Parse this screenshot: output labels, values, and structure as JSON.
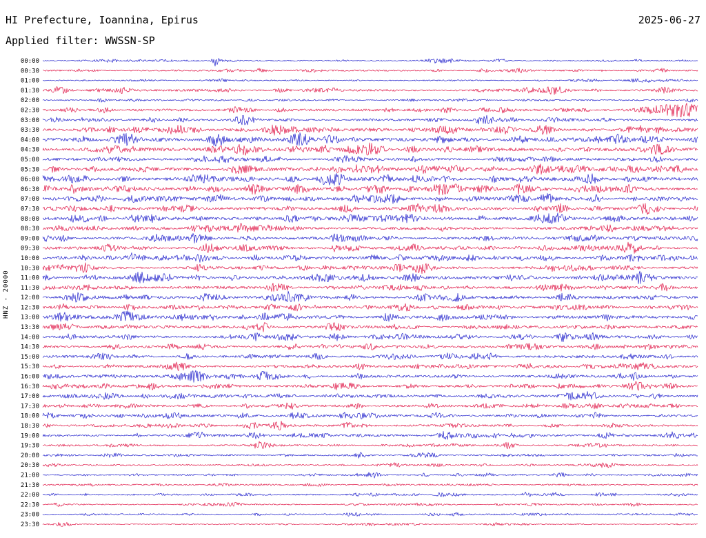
{
  "header": {
    "title": "HI Prefecture, Ioannina, Epirus",
    "date": "2025-06-27",
    "filter": "Applied filter: WWSSN-SP"
  },
  "axis": {
    "left_label": "HNZ - 20000"
  },
  "colors": {
    "blue": "#2222cc",
    "red": "#e01848",
    "text": "#000000",
    "background": "#ffffff"
  },
  "chart_data": {
    "type": "line",
    "subtype": "helicorder-seismogram",
    "title": "HI Prefecture, Ioannina, Epirus",
    "date": "2025-06-27",
    "filter": "WWSSN-SP",
    "channel": "HNZ",
    "scale": 20000,
    "row_duration_minutes": 30,
    "start_time": "00:00",
    "end_time": "23:30",
    "trace_color_cycle": [
      "blue",
      "red"
    ],
    "seed": 20250627,
    "rows": [
      {
        "t": "00:00",
        "c": "blue",
        "n": 0.8,
        "b": [
          [
            250,
            9,
            3
          ],
          [
            660,
            1.5,
            8
          ]
        ]
      },
      {
        "t": "00:30",
        "c": "red",
        "n": 1.0,
        "b": [
          [
            640,
            2.5,
            6
          ],
          [
            900,
            2,
            5
          ]
        ]
      },
      {
        "t": "01:00",
        "c": "blue",
        "n": 0.8,
        "b": [
          [
            260,
            2,
            6
          ]
        ]
      },
      {
        "t": "01:30",
        "c": "red",
        "n": 1.4,
        "b": [
          [
            25,
            5,
            8
          ],
          [
            115,
            4,
            10
          ],
          [
            345,
            2.5,
            8
          ],
          [
            745,
            3,
            10
          ],
          [
            900,
            2.5,
            8
          ]
        ]
      },
      {
        "t": "02:00",
        "c": "blue",
        "n": 0.9,
        "b": [
          [
            85,
            2,
            5
          ],
          [
            420,
            1.5,
            6
          ]
        ]
      },
      {
        "t": "02:30",
        "c": "red",
        "n": 1.6,
        "b": [
          [
            40,
            3,
            8
          ],
          [
            90,
            3,
            6
          ],
          [
            280,
            3.5,
            8
          ],
          [
            640,
            2.5,
            6
          ],
          [
            890,
            4,
            20
          ],
          [
            940,
            4,
            15
          ]
        ]
      },
      {
        "t": "03:00",
        "c": "blue",
        "n": 1.5,
        "b": [
          [
            160,
            3,
            8
          ],
          [
            290,
            4,
            10
          ],
          [
            640,
            3.5,
            8
          ],
          [
            680,
            3,
            6
          ],
          [
            740,
            3,
            8
          ]
        ]
      },
      {
        "t": "03:30",
        "c": "red",
        "n": 2.2,
        "b": [
          [
            140,
            3.5,
            8
          ],
          [
            340,
            3,
            8
          ],
          [
            590,
            4,
            10
          ],
          [
            670,
            4,
            8
          ],
          [
            730,
            3.5,
            8
          ],
          [
            850,
            3,
            6
          ]
        ]
      },
      {
        "t": "04:00",
        "c": "blue",
        "n": 2.2,
        "b": [
          [
            255,
            4.5,
            10
          ],
          [
            380,
            4,
            8
          ],
          [
            420,
            4.5,
            8
          ],
          [
            840,
            4,
            10
          ],
          [
            880,
            3.5,
            8
          ]
        ]
      },
      {
        "t": "04:30",
        "c": "red",
        "n": 2.4,
        "b": [
          [
            290,
            5,
            10
          ],
          [
            450,
            4.5,
            8
          ],
          [
            535,
            4,
            8
          ],
          [
            630,
            4,
            8
          ],
          [
            890,
            4.5,
            12
          ]
        ]
      },
      {
        "t": "05:00",
        "c": "blue",
        "n": 1.8,
        "b": [
          [
            230,
            4,
            8
          ],
          [
            890,
            3.5,
            8
          ]
        ]
      },
      {
        "t": "05:30",
        "c": "red",
        "n": 2.4,
        "b": [
          [
            280,
            4.5,
            8
          ],
          [
            460,
            4,
            8
          ],
          [
            550,
            4,
            6
          ],
          [
            600,
            3.5,
            6
          ],
          [
            780,
            4,
            8
          ],
          [
            920,
            4,
            8
          ]
        ]
      },
      {
        "t": "06:00",
        "c": "blue",
        "n": 2.4,
        "b": [
          [
            40,
            3.5,
            6
          ],
          [
            230,
            4.5,
            8
          ],
          [
            360,
            4,
            8
          ],
          [
            500,
            4,
            8
          ],
          [
            700,
            4.5,
            8
          ]
        ]
      },
      {
        "t": "06:30",
        "c": "red",
        "n": 2.4,
        "b": [
          [
            120,
            4,
            8
          ],
          [
            310,
            4.5,
            8
          ],
          [
            490,
            4,
            8
          ],
          [
            700,
            4.5,
            10
          ],
          [
            850,
            4,
            8
          ]
        ]
      },
      {
        "t": "07:00",
        "c": "blue",
        "n": 2.2,
        "b": [
          [
            80,
            4,
            8
          ],
          [
            250,
            4.5,
            8
          ],
          [
            320,
            4,
            8
          ],
          [
            730,
            4.5,
            10
          ]
        ]
      },
      {
        "t": "07:30",
        "c": "red",
        "n": 2.0,
        "b": [
          [
            100,
            3.5,
            6
          ],
          [
            180,
            3.5,
            6
          ],
          [
            580,
            3.5,
            8
          ],
          [
            870,
            4,
            8
          ]
        ]
      },
      {
        "t": "08:00",
        "c": "blue",
        "n": 2.2,
        "b": [
          [
            60,
            4,
            8
          ],
          [
            160,
            3.5,
            6
          ],
          [
            360,
            4,
            8
          ],
          [
            830,
            4.5,
            10
          ]
        ]
      },
      {
        "t": "08:30",
        "c": "red",
        "n": 2.0,
        "b": [
          [
            220,
            3.5,
            6
          ],
          [
            240,
            3.5,
            6
          ],
          [
            820,
            4,
            8
          ]
        ]
      },
      {
        "t": "09:00",
        "c": "blue",
        "n": 2.0,
        "b": [
          [
            30,
            3.5,
            6
          ],
          [
            220,
            4,
            8
          ],
          [
            430,
            3.5,
            6
          ],
          [
            790,
            3.5,
            8
          ]
        ]
      },
      {
        "t": "09:30",
        "c": "red",
        "n": 1.9,
        "b": [
          [
            240,
            3.5,
            8
          ],
          [
            540,
            3.5,
            6
          ],
          [
            730,
            3.5,
            6
          ]
        ]
      },
      {
        "t": "10:00",
        "c": "blue",
        "n": 2.0,
        "b": [
          [
            310,
            3.5,
            6
          ],
          [
            480,
            3.5,
            6
          ],
          [
            580,
            4,
            8
          ],
          [
            620,
            3.5,
            6
          ],
          [
            860,
            4,
            8
          ]
        ]
      },
      {
        "t": "10:30",
        "c": "red",
        "n": 1.9,
        "b": [
          [
            230,
            3.5,
            6
          ],
          [
            550,
            3.5,
            6
          ],
          [
            740,
            3.5,
            8
          ]
        ]
      },
      {
        "t": "11:00",
        "c": "blue",
        "n": 2.2,
        "b": [
          [
            140,
            4,
            8
          ],
          [
            180,
            3.5,
            6
          ],
          [
            470,
            4,
            8
          ],
          [
            540,
            3.5,
            6
          ],
          [
            810,
            4,
            8
          ]
        ]
      },
      {
        "t": "11:30",
        "c": "red",
        "n": 1.9,
        "b": [
          [
            350,
            3.5,
            6
          ],
          [
            550,
            3.5,
            6
          ],
          [
            900,
            3.5,
            6
          ]
        ]
      },
      {
        "t": "12:00",
        "c": "blue",
        "n": 2.2,
        "b": [
          [
            40,
            4,
            8
          ],
          [
            240,
            4,
            8
          ],
          [
            360,
            3.5,
            6
          ],
          [
            550,
            4,
            8
          ],
          [
            600,
            3.5,
            6
          ],
          [
            760,
            4,
            8
          ]
        ]
      },
      {
        "t": "12:30",
        "c": "red",
        "n": 1.8,
        "b": [
          [
            30,
            3.5,
            6
          ],
          [
            750,
            3.5,
            6
          ],
          [
            930,
            3.5,
            6
          ]
        ]
      },
      {
        "t": "13:00",
        "c": "blue",
        "n": 2.2,
        "b": [
          [
            30,
            4,
            8
          ],
          [
            200,
            4,
            8
          ],
          [
            320,
            3.5,
            6
          ],
          [
            580,
            3.5,
            6
          ],
          [
            820,
            3.5,
            6
          ]
        ]
      },
      {
        "t": "13:30",
        "c": "red",
        "n": 1.9,
        "b": [
          [
            40,
            3.5,
            6
          ],
          [
            320,
            3.5,
            6
          ],
          [
            420,
            3.5,
            6
          ]
        ]
      },
      {
        "t": "14:00",
        "c": "blue",
        "n": 1.9,
        "b": [
          [
            40,
            3.5,
            6
          ],
          [
            360,
            3.5,
            6
          ],
          [
            520,
            3.5,
            6
          ],
          [
            800,
            3.5,
            6
          ]
        ]
      },
      {
        "t": "14:30",
        "c": "red",
        "n": 1.8,
        "b": [
          [
            800,
            3.5,
            6
          ],
          [
            880,
            3.5,
            6
          ]
        ]
      },
      {
        "t": "15:00",
        "c": "blue",
        "n": 1.8,
        "b": [
          [
            210,
            3.5,
            6
          ],
          [
            630,
            3.5,
            8
          ],
          [
            650,
            3.5,
            6
          ]
        ]
      },
      {
        "t": "15:30",
        "c": "red",
        "n": 1.7,
        "b": [
          [
            200,
            3.5,
            6
          ],
          [
            460,
            3.5,
            6
          ]
        ]
      },
      {
        "t": "16:00",
        "c": "blue",
        "n": 1.8,
        "b": [
          [
            200,
            3.5,
            6
          ],
          [
            320,
            3.5,
            6
          ],
          [
            460,
            3.5,
            6
          ],
          [
            840,
            3.5,
            6
          ]
        ]
      },
      {
        "t": "16:30",
        "c": "red",
        "n": 1.7,
        "b": [
          [
            90,
            3.5,
            6
          ],
          [
            160,
            3.5,
            6
          ],
          [
            910,
            3.5,
            6
          ]
        ]
      },
      {
        "t": "17:00",
        "c": "blue",
        "n": 1.6,
        "b": [
          [
            150,
            3.5,
            6
          ],
          [
            890,
            3.5,
            6
          ]
        ]
      },
      {
        "t": "17:30",
        "c": "red",
        "n": 1.6,
        "b": [
          [
            360,
            3.5,
            6
          ],
          [
            800,
            3.5,
            6
          ]
        ]
      },
      {
        "t": "18:00",
        "c": "blue",
        "n": 1.6,
        "b": [
          [
            290,
            3.5,
            6
          ],
          [
            440,
            3.5,
            6
          ],
          [
            570,
            3.5,
            6
          ],
          [
            800,
            3.5,
            6
          ]
        ]
      },
      {
        "t": "18:30",
        "c": "red",
        "n": 1.5,
        "b": [
          [
            300,
            4,
            8
          ],
          [
            340,
            4,
            8
          ],
          [
            440,
            3.5,
            6
          ]
        ]
      },
      {
        "t": "19:00",
        "c": "blue",
        "n": 1.5,
        "b": [
          [
            230,
            3.5,
            6
          ],
          [
            580,
            3.5,
            6
          ],
          [
            820,
            3.5,
            6
          ]
        ]
      },
      {
        "t": "19:30",
        "c": "red",
        "n": 1.3,
        "b": [
          [
            310,
            3,
            6
          ],
          [
            810,
            3,
            6
          ]
        ]
      },
      {
        "t": "20:00",
        "c": "blue",
        "n": 1.1,
        "b": [
          [
            460,
            3.5,
            6
          ]
        ]
      },
      {
        "t": "20:30",
        "c": "red",
        "n": 1.0,
        "b": []
      },
      {
        "t": "21:00",
        "c": "blue",
        "n": 1.1,
        "b": [
          [
            480,
            3,
            6
          ],
          [
            750,
            3,
            6
          ]
        ]
      },
      {
        "t": "21:30",
        "c": "red",
        "n": 1.0,
        "b": []
      },
      {
        "t": "22:00",
        "c": "blue",
        "n": 1.0,
        "b": [
          [
            700,
            3,
            6
          ]
        ]
      },
      {
        "t": "22:30",
        "c": "red",
        "n": 0.9,
        "b": []
      },
      {
        "t": "23:00",
        "c": "blue",
        "n": 0.9,
        "b": [
          [
            600,
            2,
            6
          ]
        ]
      },
      {
        "t": "23:30",
        "c": "red",
        "n": 0.8,
        "b": []
      }
    ]
  }
}
